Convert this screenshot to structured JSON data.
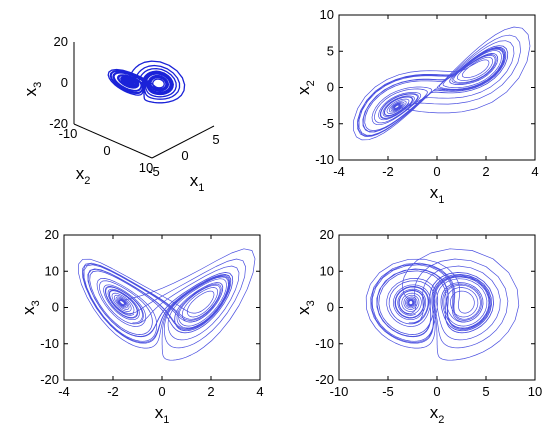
{
  "chart_data": [
    {
      "type": "line",
      "projection": "3d",
      "xlabel": "x",
      "xlabel_sub": "1",
      "ylabel": "x",
      "ylabel_sub": "2",
      "zlabel": "x",
      "zlabel_sub": "3",
      "xlim": [
        -5,
        5
      ],
      "ylim": [
        -10,
        10
      ],
      "zlim": [
        -20,
        20
      ],
      "xticks": [
        "-5",
        "0",
        "5"
      ],
      "yticks": [
        "-10",
        "0",
        "10"
      ],
      "zticks": [
        "-20",
        "0",
        "20"
      ],
      "grid": false,
      "color": "#1a22d8"
    },
    {
      "type": "line",
      "xlabel": "x",
      "xlabel_sub": "1",
      "ylabel": "x",
      "ylabel_sub": "2",
      "xlim": [
        -4,
        4
      ],
      "ylim": [
        -10,
        10
      ],
      "xticks": [
        "-4",
        "-2",
        "0",
        "2",
        "4"
      ],
      "yticks": [
        "-10",
        "-5",
        "0",
        "5",
        "10"
      ],
      "grid": false,
      "color": "#4a4fe0"
    },
    {
      "type": "line",
      "xlabel": "x",
      "xlabel_sub": "1",
      "ylabel": "x",
      "ylabel_sub": "3",
      "xlim": [
        -4,
        4
      ],
      "ylim": [
        -20,
        20
      ],
      "xticks": [
        "-4",
        "-2",
        "0",
        "2",
        "4"
      ],
      "yticks": [
        "-20",
        "-10",
        "0",
        "10",
        "20"
      ],
      "grid": false,
      "color": "#4a4fe0"
    },
    {
      "type": "line",
      "xlabel": "x",
      "xlabel_sub": "2",
      "ylabel": "x",
      "ylabel_sub": "3",
      "xlim": [
        -10,
        10
      ],
      "ylim": [
        -20,
        20
      ],
      "xticks": [
        "-10",
        "-5",
        "0",
        "5",
        "10"
      ],
      "yticks": [
        "-20",
        "-10",
        "0",
        "10",
        "20"
      ],
      "grid": false,
      "color": "#4a4fe0"
    }
  ]
}
